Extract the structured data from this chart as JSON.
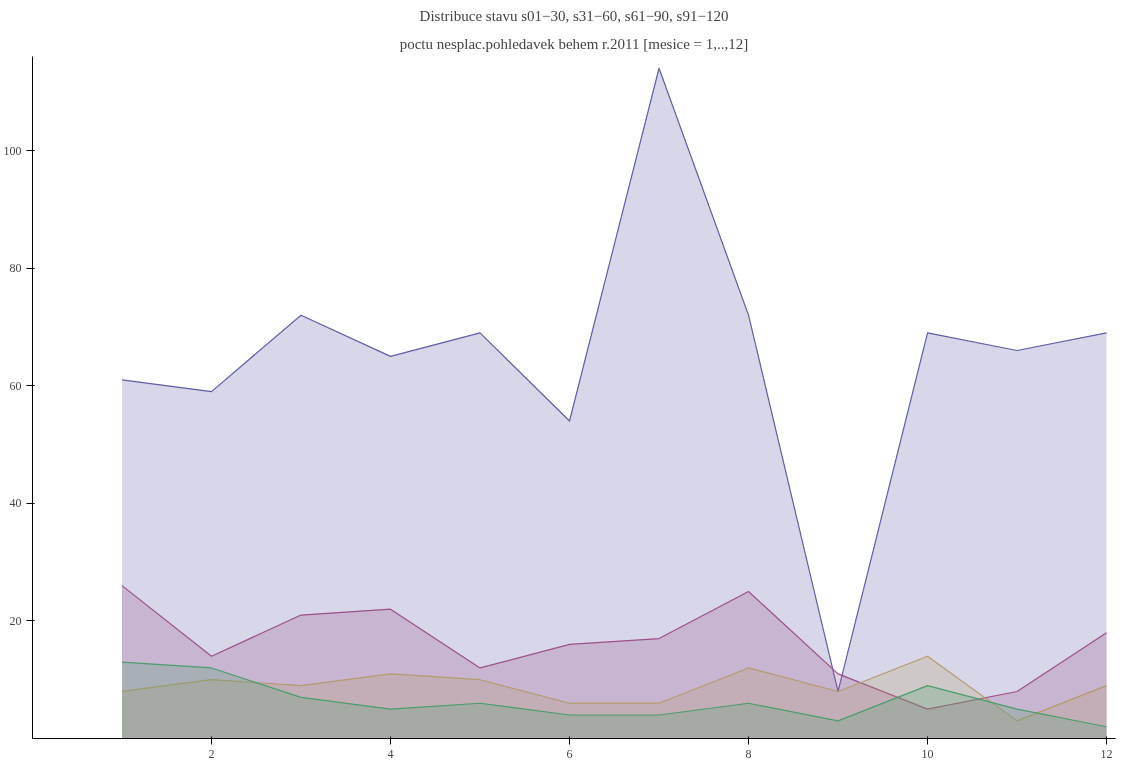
{
  "chart_data": {
    "type": "area",
    "title": "Distribuce stavu s01−30, s31−60, s61−90, s91−120",
    "subtitle": "poctu nesplac.pohledavek behem r.2011 [mesice = 1,..,12]",
    "x": [
      1,
      2,
      3,
      4,
      5,
      6,
      7,
      8,
      9,
      10,
      11,
      12
    ],
    "series": [
      {
        "color": "#5e5ea8",
        "values": [
          61,
          59,
          72,
          65,
          69,
          54,
          114,
          72,
          8,
          69,
          66,
          69
        ]
      },
      {
        "color": "#9c4f8a",
        "values": [
          26,
          14,
          21,
          22,
          12,
          16,
          17,
          25,
          11,
          5,
          8,
          18
        ]
      },
      {
        "color": "#b59a6c",
        "values": [
          8,
          10,
          9,
          11,
          10,
          6,
          6,
          12,
          8,
          14,
          3,
          9
        ]
      },
      {
        "color": "#4a9e6a",
        "values": [
          13,
          12,
          7,
          5,
          6,
          4,
          4,
          6,
          3,
          9,
          5,
          2
        ]
      }
    ],
    "xlim": [
      0,
      12.1
    ],
    "ylim": [
      0,
      116
    ],
    "xticks": [
      2,
      4,
      6,
      8,
      10,
      12
    ],
    "yticks": [
      20,
      40,
      60,
      80,
      100
    ],
    "grid": false
  }
}
